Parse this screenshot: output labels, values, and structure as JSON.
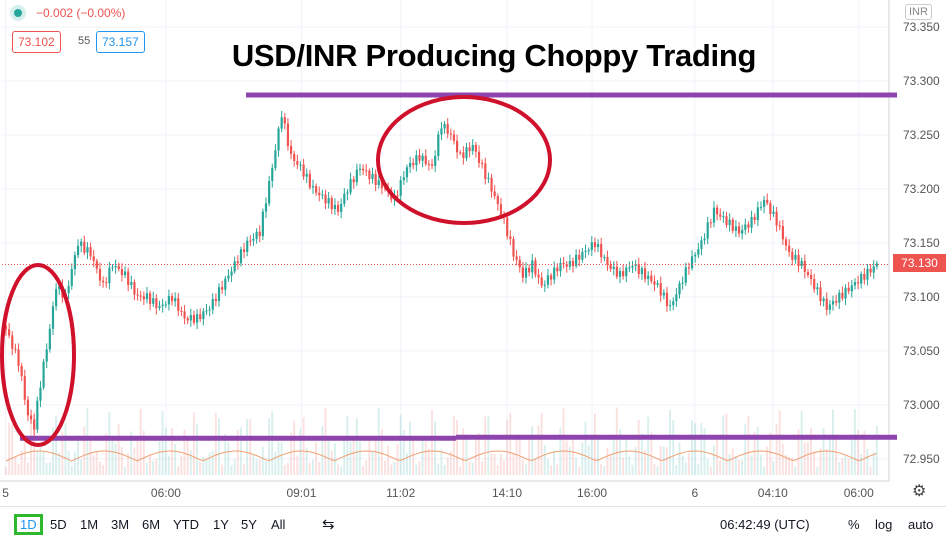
{
  "header": {
    "change_text": "−0.002 (−0.00%)",
    "bid": "73.102",
    "spread": "55",
    "ask": "73.157",
    "currency": "INR",
    "headline": "USD/INR Producing Choppy Trading"
  },
  "current_price_label": "73.130",
  "toolbar": {
    "ranges": [
      "1D",
      "5D",
      "1M",
      "3M",
      "6M",
      "YTD",
      "1Y",
      "5Y",
      "All"
    ],
    "active_range": "1D",
    "clock": "06:42:49 (UTC)",
    "percent": "%",
    "log": "log",
    "auto": "auto"
  },
  "colors": {
    "up": "#26a69a",
    "down": "#ef5350",
    "level_line": "#8e44ad",
    "annotation_ellipse": "#d0112b",
    "volume_ma": "#f0a070",
    "price_line": "#ef5350"
  },
  "icons": [
    "gear-icon",
    "compare-icon"
  ],
  "chart_data": {
    "type": "candlestick",
    "title": "USD/INR Producing Choppy Trading",
    "x_tick_labels": [
      "5",
      "06:00",
      "09:01",
      "11:02",
      "14:10",
      "16:00",
      "6",
      "04:10",
      "06:00"
    ],
    "y_tick_labels": [
      "73.350",
      "73.300",
      "73.250",
      "73.200",
      "73.150",
      "73.100",
      "73.050",
      "73.000",
      "72.950"
    ],
    "ylim": [
      72.935,
      73.375
    ],
    "last_price": 73.13,
    "resistance": 73.287,
    "support": 72.969,
    "series": [
      {
        "name": "close",
        "anchors": [
          [
            0,
            73.07
          ],
          [
            4,
            73.04
          ],
          [
            7,
            72.99
          ],
          [
            9,
            72.98
          ],
          [
            11,
            73.02
          ],
          [
            14,
            73.07
          ],
          [
            16,
            73.11
          ],
          [
            19,
            73.1
          ],
          [
            23,
            73.15
          ],
          [
            27,
            73.14
          ],
          [
            31,
            73.11
          ],
          [
            34,
            73.13
          ],
          [
            38,
            73.12
          ],
          [
            42,
            73.1
          ],
          [
            45,
            73.1
          ],
          [
            49,
            73.09
          ],
          [
            53,
            73.1
          ],
          [
            57,
            73.08
          ],
          [
            61,
            73.08
          ],
          [
            65,
            73.09
          ],
          [
            69,
            73.11
          ],
          [
            73,
            73.13
          ],
          [
            77,
            73.15
          ],
          [
            81,
            73.16
          ],
          [
            85,
            73.22
          ],
          [
            88,
            73.27
          ],
          [
            91,
            73.23
          ],
          [
            94,
            73.22
          ],
          [
            98,
            73.2
          ],
          [
            102,
            73.19
          ],
          [
            106,
            73.18
          ],
          [
            109,
            73.2
          ],
          [
            113,
            73.22
          ],
          [
            117,
            73.21
          ],
          [
            121,
            73.2
          ],
          [
            124,
            73.19
          ],
          [
            128,
            73.22
          ],
          [
            132,
            73.23
          ],
          [
            136,
            73.22
          ],
          [
            139,
            73.26
          ],
          [
            142,
            73.25
          ],
          [
            145,
            73.23
          ],
          [
            149,
            73.24
          ],
          [
            152,
            73.22
          ],
          [
            155,
            73.2
          ],
          [
            159,
            73.17
          ],
          [
            162,
            73.14
          ],
          [
            165,
            73.12
          ],
          [
            168,
            73.13
          ],
          [
            171,
            73.11
          ],
          [
            174,
            73.12
          ],
          [
            177,
            73.13
          ],
          [
            180,
            73.13
          ],
          [
            184,
            73.14
          ],
          [
            188,
            73.15
          ],
          [
            192,
            73.13
          ],
          [
            196,
            73.12
          ],
          [
            200,
            73.13
          ],
          [
            204,
            73.12
          ],
          [
            208,
            73.11
          ],
          [
            212,
            73.09
          ],
          [
            215,
            73.11
          ],
          [
            218,
            73.13
          ],
          [
            222,
            73.15
          ],
          [
            226,
            73.18
          ],
          [
            230,
            73.17
          ],
          [
            234,
            73.16
          ],
          [
            238,
            73.17
          ],
          [
            242,
            73.19
          ],
          [
            246,
            73.17
          ],
          [
            250,
            73.14
          ],
          [
            254,
            73.13
          ],
          [
            258,
            73.11
          ],
          [
            262,
            73.09
          ],
          [
            266,
            73.1
          ],
          [
            270,
            73.11
          ],
          [
            274,
            73.12
          ],
          [
            278,
            73.13
          ]
        ]
      }
    ]
  }
}
